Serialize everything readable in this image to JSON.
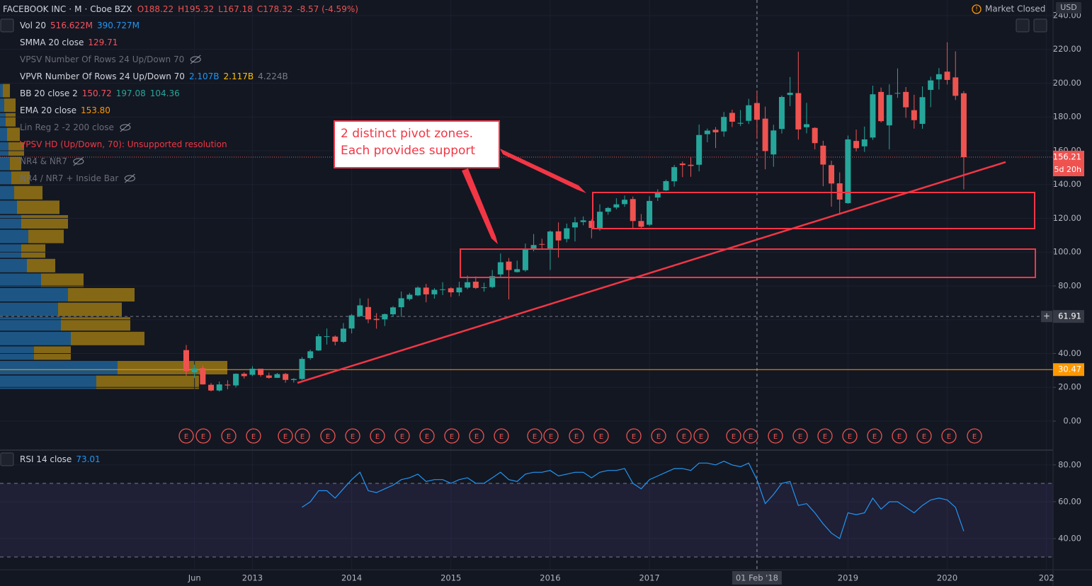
{
  "header": {
    "symbol": "FACEBOOK INC",
    "interval": "M",
    "exchange": "Cboe BZX",
    "ohlc": [
      "O188.22",
      "H195.32",
      "L167.18",
      "C178.32"
    ],
    "change": "-8.57 (-4.59%)",
    "status": "Market Closed",
    "currency": "USD"
  },
  "indicators": [
    {
      "name": "Vol 20",
      "values": [
        "516.622M",
        "390.727M"
      ],
      "colors": [
        "#f7525f",
        "#2196f3"
      ]
    },
    {
      "name": "SMMA 20 close",
      "values": [
        "129.71"
      ],
      "colors": [
        "#f7525f"
      ]
    },
    {
      "name": "VPSV Number Of Rows 24 Up/Down 70",
      "values": [],
      "colors": [],
      "hidden": true
    },
    {
      "name": "VPVR Number Of Rows 24 Up/Down 70",
      "values": [
        "2.107B",
        "2.117B",
        "4.224B"
      ],
      "colors": [
        "#2196f3",
        "#ffc107",
        "#787b86"
      ]
    },
    {
      "name": "BB 20 close 2",
      "values": [
        "150.72",
        "197.08",
        "104.36"
      ],
      "colors": [
        "#f7525f",
        "#26a69a",
        "#26a69a"
      ]
    },
    {
      "name": "EMA 20 close",
      "values": [
        "153.80"
      ],
      "colors": [
        "#ff9800"
      ]
    },
    {
      "name": "Lin Reg 2 -2 200 close",
      "values": [],
      "colors": [],
      "hidden": true
    },
    {
      "name": "VPSV HD (Up/Down, 70): Unsupported resolution",
      "values": [],
      "colors": [],
      "error": true
    },
    {
      "name": "NR4 & NR7",
      "values": [],
      "colors": [],
      "hidden": true
    },
    {
      "name": "NR4 / NR7 + Inside Bar",
      "values": [],
      "colors": [],
      "hidden": true
    }
  ],
  "annotation": {
    "lines": [
      "2 distinct pivot zones.",
      "Each provides support"
    ]
  },
  "earnings_marker": "E",
  "chart_data": [
    {
      "type": "candlestick",
      "up_color": "#26a69a",
      "down_color": "#ef5350",
      "grid": true,
      "categories": [
        null,
        "Jun",
        null,
        null,
        null,
        null,
        null,
        null,
        "2013",
        null,
        null,
        null,
        null,
        null,
        null,
        null,
        null,
        null,
        null,
        null,
        "2014",
        null,
        null,
        null,
        null,
        null,
        null,
        null,
        null,
        null,
        null,
        null,
        "2015",
        null,
        null,
        null,
        null,
        null,
        null,
        null,
        null,
        null,
        null,
        null,
        "2016",
        null,
        null,
        null,
        null,
        null,
        null,
        null,
        null,
        null,
        null,
        null,
        "2017",
        null,
        null,
        null,
        null,
        null,
        null,
        null,
        null,
        null,
        null,
        null,
        null,
        "01 Feb '18",
        null,
        null,
        null,
        null,
        null,
        null,
        null,
        null,
        null,
        null,
        "2019",
        null,
        null,
        null,
        null,
        null,
        null,
        null,
        null,
        null,
        null,
        null,
        "2020",
        null,
        null,
        null,
        null,
        null,
        null,
        null,
        null,
        null,
        null,
        null,
        "202"
      ],
      "open": [
        42,
        28.9,
        31.3,
        21.5,
        18.1,
        21.6,
        21.1,
        28,
        27.4,
        31,
        27,
        25.6,
        27.9,
        24.3,
        24.9,
        37.3,
        41.8,
        50,
        50,
        46.9,
        54.8,
        62.1,
        67.5,
        60.5,
        60.2,
        63.2,
        67.4,
        72.2,
        74.4,
        79,
        75,
        77.7,
        78.6,
        76.2,
        79,
        82.5,
        79,
        79.3,
        86.8,
        94.4,
        88.2,
        89.3,
        101.9,
        104.8,
        102,
        112.3,
        107.8,
        114.6,
        117.8,
        118.5,
        114.2,
        123.9,
        126.4,
        128.4,
        131.4,
        118.4,
        116.2,
        132.3,
        136.5,
        141.9,
        152.4,
        151.7,
        151.7,
        169.8,
        172.4,
        171.4,
        182.4,
        176,
        177.7,
        188.22,
        179,
        157.8,
        172.9,
        193,
        194.1,
        173.9,
        173.5,
        163,
        151.5,
        140.7,
        128.99,
        165.8,
        162.6,
        167.8,
        194.8,
        175,
        194,
        194.8,
        184,
        175.9,
        196,
        202.2,
        206.8,
        203.4,
        194,
        null,
        null,
        null,
        null,
        null,
        null,
        null,
        null,
        null,
        null
      ],
      "high": [
        45,
        33.4,
        32.9,
        22.5,
        23.4,
        24.2,
        28.2,
        28.9,
        32.5,
        31,
        28.7,
        28.5,
        28.5,
        25.4,
        37.9,
        42.3,
        51.6,
        54.8,
        50.7,
        58,
        63.4,
        72.6,
        72.6,
        63.9,
        63.6,
        68,
        76.7,
        75.9,
        79.7,
        81.2,
        78.7,
        82.2,
        79.2,
        82.5,
        86.1,
        85.6,
        81.9,
        89.4,
        99.2,
        96.5,
        95,
        105.1,
        110.7,
        107.9,
        112.8,
        117.6,
        116.9,
        120.8,
        121.1,
        119.4,
        128.3,
        126.7,
        131.9,
        133.5,
        132.9,
        122.5,
        133.1,
        137.2,
        142.9,
        151.6,
        153.6,
        156.5,
        175.5,
        173.1,
        174,
        182.9,
        184.3,
        184.1,
        190.7,
        195.32,
        186.1,
        175.4,
        192.7,
        203.6,
        218.6,
        188.3,
        173.9,
        165.9,
        154.1,
        147.2,
        169,
        172.5,
        174.3,
        198.5,
        197.4,
        199.3,
        208.7,
        197.7,
        193.1,
        198.1,
        203.8,
        208.9,
        224.2,
        218.8,
        195.3,
        null,
        null,
        null,
        null,
        null,
        null,
        null,
        null,
        null,
        null
      ],
      "low": [
        26.8,
        25.5,
        21.6,
        17.6,
        17.5,
        18.8,
        19.9,
        25.2,
        26.6,
        26.3,
        25.1,
        25.5,
        22.7,
        22.8,
        24.3,
        36.3,
        41.5,
        45.3,
        44.8,
        46.3,
        51.9,
        61.8,
        57.9,
        54.7,
        56.3,
        61.8,
        61.6,
        71.3,
        73.9,
        70.3,
        72.5,
        74.6,
        73.5,
        74,
        78.1,
        78.2,
        76.6,
        78.6,
        85.3,
        72,
        87.9,
        88.4,
        100.5,
        101.5,
        89.4,
        96.8,
        105.8,
        106.3,
        115.9,
        108.2,
        112.6,
        122.1,
        125.3,
        126.8,
        113.6,
        114,
        115.5,
        130.3,
        136.2,
        138.8,
        144.4,
        144.6,
        147.8,
        165,
        161.6,
        168.3,
        174,
        174.6,
        175.8,
        167.18,
        149,
        150.5,
        170.2,
        186.4,
        166.6,
        170.3,
        160.8,
        139,
        126.9,
        123,
        128.6,
        159.6,
        159.3,
        166.4,
        176.7,
        160.8,
        191.3,
        179.5,
        173.1,
        173,
        185.8,
        196.2,
        199.2,
        190,
        137.1,
        null,
        null,
        null,
        null,
        null,
        null,
        null,
        null,
        null,
        null
      ],
      "close": [
        29.6,
        31.1,
        21.7,
        18.1,
        21.7,
        21.1,
        28,
        26.6,
        31,
        27.3,
        25.6,
        27.8,
        24.4,
        24.9,
        36.8,
        41.3,
        50.2,
        50.2,
        47,
        54.7,
        62.6,
        68.5,
        60.2,
        59.8,
        63.3,
        67.3,
        72.7,
        74.8,
        79,
        75,
        77.7,
        78,
        76.2,
        79,
        82.2,
        78.8,
        79.2,
        85.8,
        94,
        89.4,
        89.9,
        102,
        104.2,
        104.7,
        112.2,
        106.9,
        114.1,
        117.6,
        118.8,
        114.3,
        123.9,
        126.1,
        128.3,
        131,
        118.4,
        115,
        130.3,
        135.5,
        142,
        150.3,
        151.5,
        151,
        169.3,
        171.9,
        170.9,
        180,
        177.2,
        176.5,
        186.9,
        178.32,
        159.8,
        172,
        191.8,
        194.3,
        172.6,
        175.7,
        164.5,
        151.8,
        140.6,
        131.1,
        166.7,
        161.5,
        166.7,
        193.4,
        177.5,
        193,
        194.2,
        185.7,
        178.1,
        191.7,
        201.6,
        205.3,
        201.9,
        192.5,
        156.21,
        null,
        null,
        null,
        null,
        null,
        null,
        null,
        null,
        null,
        null
      ],
      "ylim": [
        -15.5,
        249.2
      ],
      "yticks": [
        {
          "value": 0,
          "label": "0.00"
        },
        {
          "value": 20,
          "label": "20.00"
        },
        {
          "value": 40,
          "label": "40.00"
        },
        {
          "value": 60,
          "label": "60.00"
        },
        {
          "value": 80,
          "label": "80.00"
        },
        {
          "value": 100,
          "label": "100.00"
        },
        {
          "value": 120,
          "label": "120.00"
        },
        {
          "value": 140,
          "label": "140.00"
        },
        {
          "value": 160,
          "label": "160.00"
        },
        {
          "value": 180,
          "label": "180.00"
        },
        {
          "value": 200,
          "label": "200.00"
        },
        {
          "value": 220,
          "label": "220.00"
        },
        {
          "value": 240,
          "label": "240.00"
        }
      ],
      "price_lines": [
        {
          "value": 156.21,
          "color": "#ef5350"
        },
        {
          "value": 61.91,
          "color": "#787b86"
        },
        {
          "value": 30.47,
          "color": "#ff9800"
        }
      ],
      "countdown": "5d 20h"
    },
    {
      "type": "line",
      "title": "RSI 14 close",
      "current": "73.01",
      "color": "#2196f3",
      "series": [
        {
          "name": "RSI",
          "color": "#2196f3",
          "values": [
            null,
            null,
            null,
            null,
            null,
            null,
            null,
            null,
            null,
            null,
            null,
            null,
            null,
            null,
            57,
            60,
            66,
            66,
            62,
            67,
            72,
            76,
            66,
            65,
            67,
            69,
            72,
            73,
            75,
            71,
            72,
            72,
            70,
            72,
            73,
            70,
            70,
            73,
            76,
            72,
            71,
            75,
            76,
            76,
            77,
            74,
            75,
            76,
            76,
            73,
            76,
            77,
            77,
            78,
            70,
            67,
            72,
            74,
            76,
            78,
            78,
            77,
            81,
            81,
            80,
            82,
            80,
            79,
            81,
            72,
            59,
            64,
            70,
            71,
            58,
            59,
            54,
            48,
            43,
            40,
            54,
            53,
            54,
            62,
            56,
            60,
            60,
            57,
            54,
            58,
            61,
            62,
            61,
            57,
            44,
            null,
            null,
            null,
            null,
            null,
            null,
            null,
            null,
            null,
            null
          ]
        }
      ],
      "bands": [
        70,
        30
      ],
      "ylim": [
        23.1,
        86.5
      ],
      "yticks": [
        {
          "value": 40,
          "label": "40.00"
        },
        {
          "value": 60,
          "label": "60.00"
        },
        {
          "value": 80,
          "label": "80.00"
        }
      ]
    }
  ]
}
